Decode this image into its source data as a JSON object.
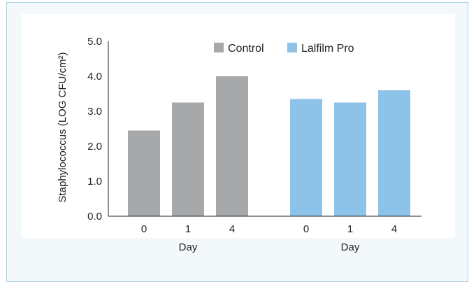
{
  "chart_data": {
    "type": "bar",
    "ylabel": "Staphylococcus (LOG CFU/cm²)",
    "ylim": [
      0,
      5
    ],
    "yticks": [
      "0.0",
      "1.0",
      "2.0",
      "3.0",
      "4.0",
      "5.0"
    ],
    "groups": [
      {
        "series": "Control",
        "xlabel": "Day",
        "categories": [
          "0",
          "1",
          "4"
        ],
        "values": [
          2.45,
          3.25,
          4.0
        ]
      },
      {
        "series": "Lalfilm Pro",
        "xlabel": "Day",
        "categories": [
          "0",
          "1",
          "4"
        ],
        "values": [
          3.35,
          3.25,
          3.6
        ]
      }
    ],
    "legend": [
      {
        "name": "Control",
        "color": "#a7a8aa"
      },
      {
        "name": "Lalfilm Pro",
        "color": "#8dc3e8"
      }
    ],
    "legend_position": "top-right",
    "grid": false
  }
}
